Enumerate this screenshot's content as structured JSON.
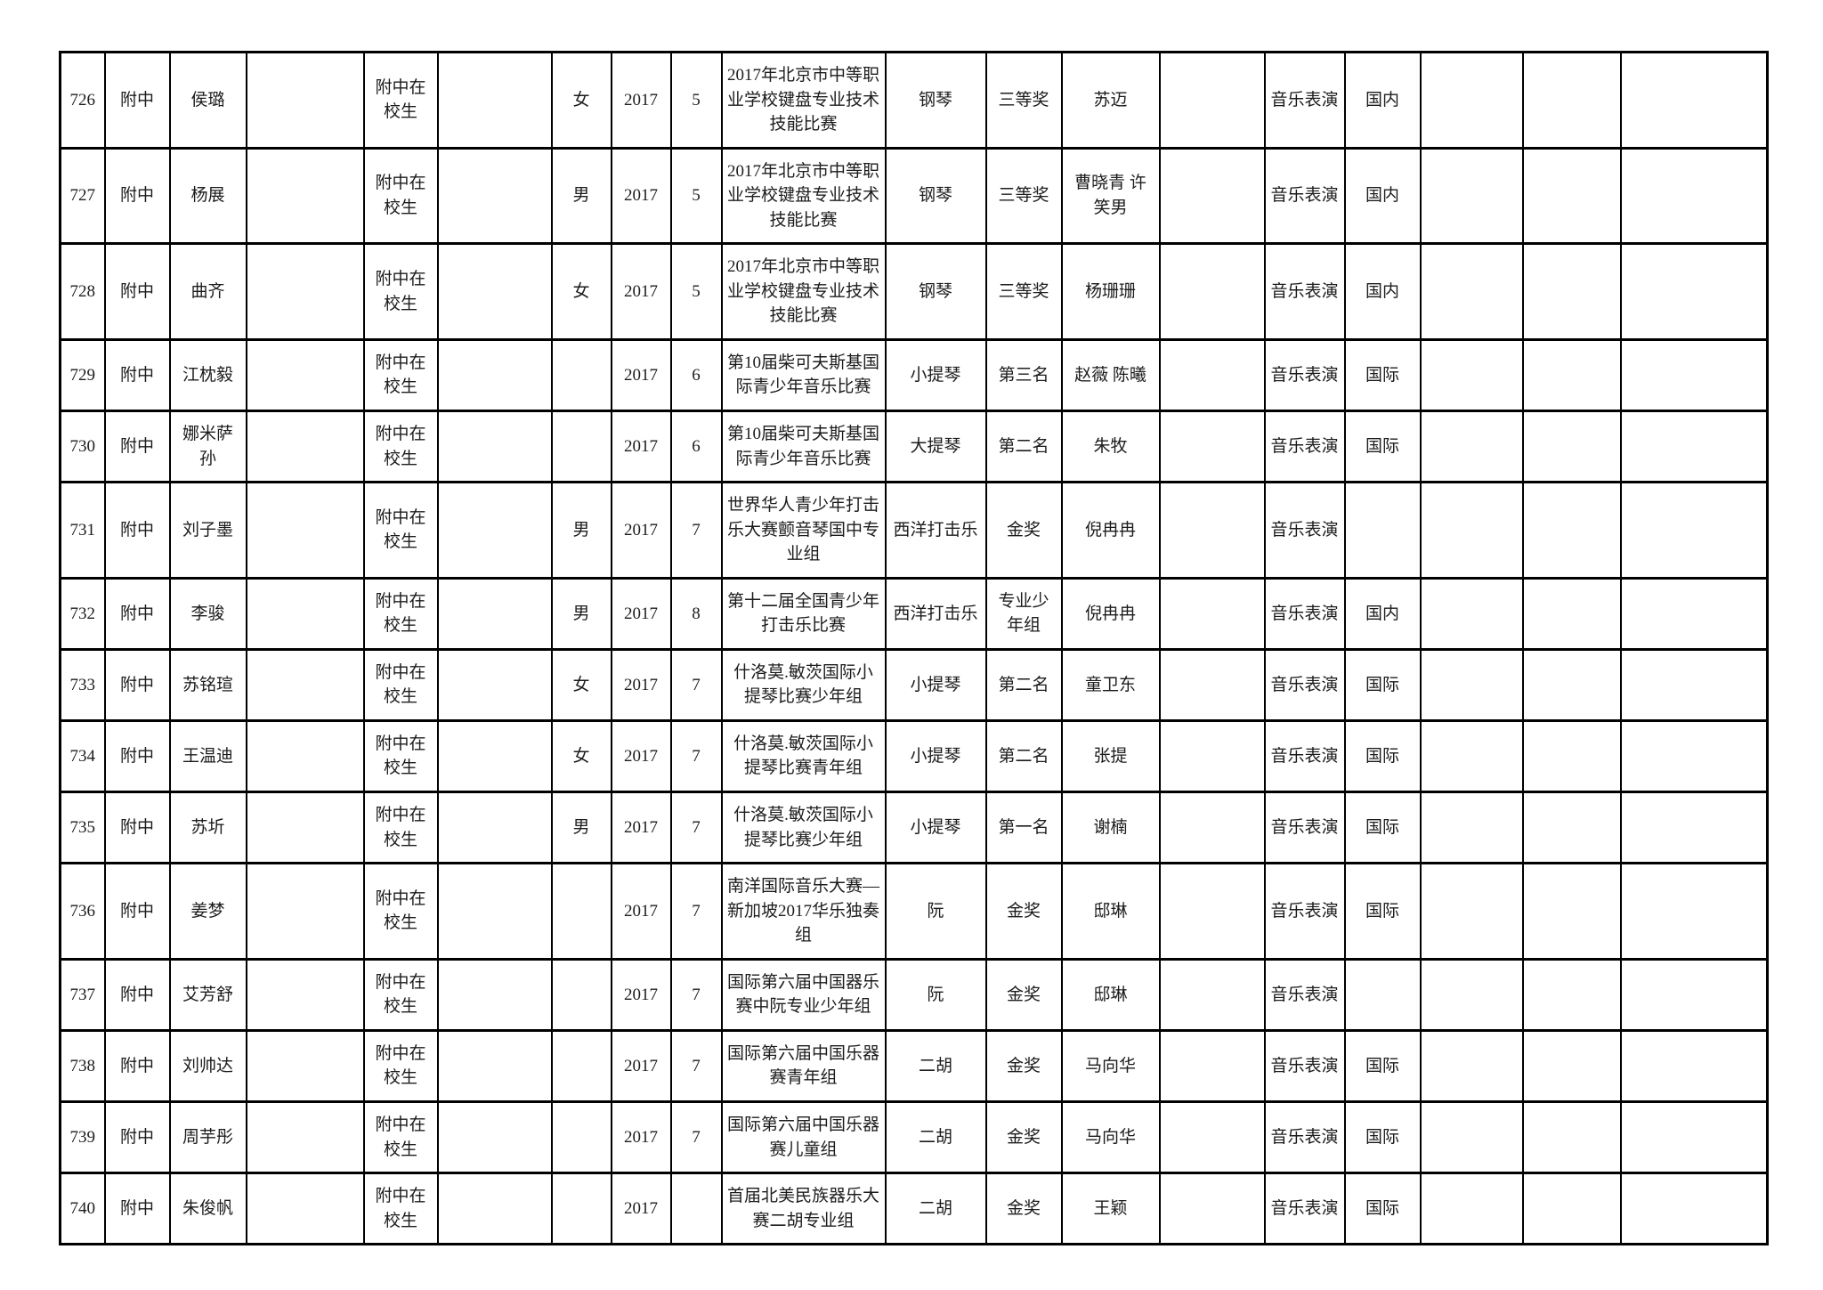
{
  "page": {
    "background_color": "#ffffff",
    "text_color": "#1c1c1c",
    "border_color": "#000000"
  },
  "table": {
    "rows": [
      {
        "cells": [
          "726",
          "附中",
          "侯璐",
          "",
          "附中在校生",
          "",
          "女",
          "2017",
          "5",
          "2017年北京市中等职业学校键盘专业技术技能比赛",
          "钢琴",
          "三等奖",
          "苏迈",
          "",
          "音乐表演",
          "国内",
          "",
          "",
          ""
        ]
      },
      {
        "cells": [
          "727",
          "附中",
          "杨展",
          "",
          "附中在校生",
          "",
          "男",
          "2017",
          "5",
          "2017年北京市中等职业学校键盘专业技术技能比赛",
          "钢琴",
          "三等奖",
          "曹晓青 许笑男",
          "",
          "音乐表演",
          "国内",
          "",
          "",
          ""
        ]
      },
      {
        "cells": [
          "728",
          "附中",
          "曲齐",
          "",
          "附中在校生",
          "",
          "女",
          "2017",
          "5",
          "2017年北京市中等职业学校键盘专业技术技能比赛",
          "钢琴",
          "三等奖",
          "杨珊珊",
          "",
          "音乐表演",
          "国内",
          "",
          "",
          ""
        ]
      },
      {
        "cells": [
          "729",
          "附中",
          "江枕毅",
          "",
          "附中在校生",
          "",
          "",
          "2017",
          "6",
          "第10届柴可夫斯基国际青少年音乐比赛",
          "小提琴",
          "第三名",
          "赵薇 陈曦",
          "",
          "音乐表演",
          "国际",
          "",
          "",
          ""
        ]
      },
      {
        "cells": [
          "730",
          "附中",
          "娜米萨孙",
          "",
          "附中在校生",
          "",
          "",
          "2017",
          "6",
          "第10届柴可夫斯基国际青少年音乐比赛",
          "大提琴",
          "第二名",
          "朱牧",
          "",
          "音乐表演",
          "国际",
          "",
          "",
          ""
        ]
      },
      {
        "cells": [
          "731",
          "附中",
          "刘子墨",
          "",
          "附中在校生",
          "",
          "男",
          "2017",
          "7",
          "世界华人青少年打击乐大赛颤音琴国中专业组",
          "西洋打击乐",
          "金奖",
          "倪冉冉",
          "",
          "音乐表演",
          "",
          "",
          "",
          ""
        ]
      },
      {
        "cells": [
          "732",
          "附中",
          "李骏",
          "",
          "附中在校生",
          "",
          "男",
          "2017",
          "8",
          "第十二届全国青少年打击乐比赛",
          "西洋打击乐",
          "专业少年组",
          "倪冉冉",
          "",
          "音乐表演",
          "国内",
          "",
          "",
          ""
        ]
      },
      {
        "cells": [
          "733",
          "附中",
          "苏铭瑄",
          "",
          "附中在校生",
          "",
          "女",
          "2017",
          "7",
          "什洛莫.敏茨国际小提琴比赛少年组",
          "小提琴",
          "第二名",
          "童卫东",
          "",
          "音乐表演",
          "国际",
          "",
          "",
          ""
        ]
      },
      {
        "cells": [
          "734",
          "附中",
          "王温迪",
          "",
          "附中在校生",
          "",
          "女",
          "2017",
          "7",
          "什洛莫.敏茨国际小提琴比赛青年组",
          "小提琴",
          "第二名",
          "张提",
          "",
          "音乐表演",
          "国际",
          "",
          "",
          ""
        ]
      },
      {
        "cells": [
          "735",
          "附中",
          "苏圻",
          "",
          "附中在校生",
          "",
          "男",
          "2017",
          "7",
          "什洛莫.敏茨国际小提琴比赛少年组",
          "小提琴",
          "第一名",
          "谢楠",
          "",
          "音乐表演",
          "国际",
          "",
          "",
          ""
        ]
      },
      {
        "cells": [
          "736",
          "附中",
          "姜梦",
          "",
          "附中在校生",
          "",
          "",
          "2017",
          "7",
          "南洋国际音乐大赛—新加坡2017华乐独奏组",
          "阮",
          "金奖",
          "邸琳",
          "",
          "音乐表演",
          "国际",
          "",
          "",
          ""
        ]
      },
      {
        "cells": [
          "737",
          "附中",
          "艾芳舒",
          "",
          "附中在校生",
          "",
          "",
          "2017",
          "7",
          "国际第六届中国器乐赛中阮专业少年组",
          "阮",
          "金奖",
          "邸琳",
          "",
          "音乐表演",
          "",
          "",
          "",
          ""
        ]
      },
      {
        "cells": [
          "738",
          "附中",
          "刘帅达",
          "",
          "附中在校生",
          "",
          "",
          "2017",
          "7",
          "国际第六届中国乐器赛青年组",
          "二胡",
          "金奖",
          "马向华",
          "",
          "音乐表演",
          "国际",
          "",
          "",
          ""
        ]
      },
      {
        "cells": [
          "739",
          "附中",
          "周芋彤",
          "",
          "附中在校生",
          "",
          "",
          "2017",
          "7",
          "国际第六届中国乐器赛儿童组",
          "二胡",
          "金奖",
          "马向华",
          "",
          "音乐表演",
          "国际",
          "",
          "",
          ""
        ]
      },
      {
        "cells": [
          "740",
          "附中",
          "朱俊帆",
          "",
          "附中在校生",
          "",
          "",
          "2017",
          "",
          "首届北美民族器乐大赛二胡专业组",
          "二胡",
          "金奖",
          "王颖",
          "",
          "音乐表演",
          "国际",
          "",
          "",
          ""
        ]
      }
    ]
  }
}
